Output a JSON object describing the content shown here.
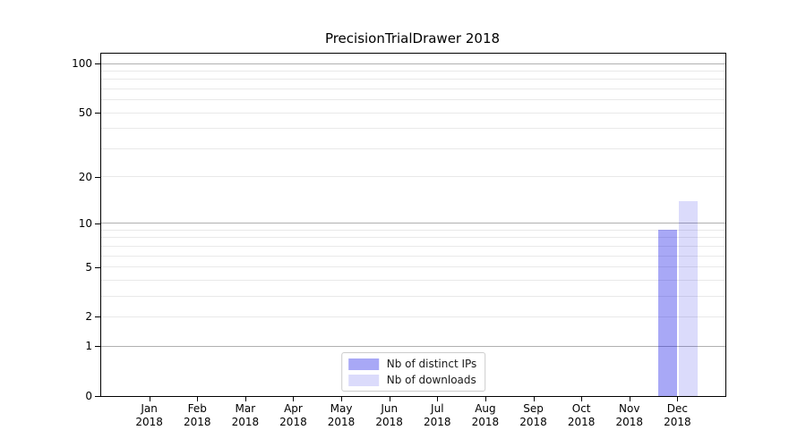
{
  "chart_data": {
    "type": "bar",
    "title": "PrecisionTrialDrawer 2018",
    "xlabel": "",
    "ylabel": "",
    "yscale": "log1p",
    "ylim": [
      0,
      115
    ],
    "grid": true,
    "categories": [
      "Jan 2018",
      "Feb 2018",
      "Mar 2018",
      "Apr 2018",
      "May 2018",
      "Jun 2018",
      "Jul 2018",
      "Aug 2018",
      "Sep 2018",
      "Oct 2018",
      "Nov 2018",
      "Dec 2018"
    ],
    "series": [
      {
        "name": "Nb of distinct IPs",
        "color_hex": "#a8a8f6",
        "css_color": "rgba(0,0,230,0.34)",
        "values": [
          0,
          0,
          0,
          0,
          0,
          0,
          0,
          0,
          0,
          0,
          0,
          9
        ]
      },
      {
        "name": "Nb of downloads",
        "color_hex": "#dcdcfa",
        "css_color": "rgba(0,0,230,0.14)",
        "values": [
          0,
          0,
          0,
          0,
          0,
          0,
          0,
          0,
          0,
          0,
          0,
          14
        ]
      }
    ],
    "yticks": [
      0,
      1,
      2,
      5,
      10,
      20,
      50,
      100
    ],
    "y_gridlines_major": [
      1,
      10,
      100
    ],
    "y_gridlines_minor": [
      2,
      3,
      4,
      5,
      6,
      7,
      8,
      9,
      20,
      30,
      40,
      50,
      60,
      70,
      80,
      90
    ],
    "legend_position": "lower center",
    "colors": {
      "grid_major": "#b0b0b0",
      "grid_minor": "#e9e9e9",
      "spine": "#000000",
      "legend_border": "#cccccc",
      "text": "#000000",
      "background": "#ffffff"
    }
  }
}
